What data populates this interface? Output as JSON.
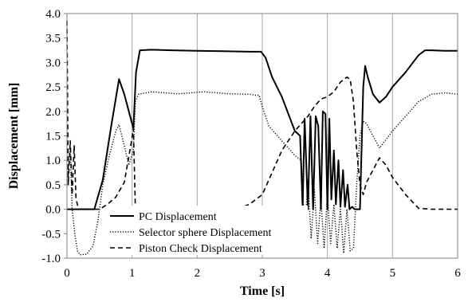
{
  "chart_data": {
    "type": "line",
    "xlabel": "Time [s]",
    "ylabel": "Displacement [mm]",
    "xlim": [
      0,
      6
    ],
    "ylim": [
      -1.0,
      4.0
    ],
    "x_ticks": [
      "0",
      "1",
      "2",
      "3",
      "4",
      "5",
      "6"
    ],
    "y_ticks": [
      "-1.0",
      "-0.5",
      "0.0",
      "0.5",
      "1.0",
      "1.5",
      "2.0",
      "2.5",
      "3.0",
      "3.5",
      "4.0"
    ],
    "grid": "vertical",
    "legend_position": "bottom-center",
    "series": [
      {
        "name": "PC Displacement",
        "style": "solid",
        "color": "#000000",
        "x": [
          0,
          0.3,
          0.42,
          0.55,
          0.68,
          0.8,
          0.88,
          0.95,
          1.02,
          1.06,
          1.12,
          1.3,
          1.6,
          2.0,
          2.4,
          2.8,
          2.98,
          3.05,
          3.15,
          3.3,
          3.5,
          3.58,
          3.62,
          3.65,
          3.7,
          3.74,
          3.78,
          3.82,
          3.86,
          3.9,
          3.93,
          3.97,
          4.0,
          4.03,
          4.06,
          4.1,
          4.13,
          4.17,
          4.2,
          4.24,
          4.27,
          4.31,
          4.34,
          4.38,
          4.42,
          4.46,
          4.5,
          4.55,
          4.58,
          4.62,
          4.7,
          4.8,
          4.9,
          5.0,
          5.2,
          5.4,
          5.5,
          5.6,
          5.8,
          6.0
        ],
        "y": [
          0,
          0,
          0,
          0.6,
          1.7,
          2.66,
          2.35,
          2.0,
          1.65,
          2.8,
          3.25,
          3.26,
          3.25,
          3.24,
          3.23,
          3.22,
          3.22,
          3.1,
          2.7,
          2.3,
          1.6,
          1.5,
          0.05,
          1.85,
          0,
          1.9,
          0,
          1.9,
          1.7,
          0,
          2.0,
          1.95,
          0,
          1.85,
          0.2,
          1.2,
          0.1,
          1.0,
          0.05,
          0.8,
          0.05,
          0.5,
          0,
          0.05,
          0,
          0,
          0,
          2.5,
          2.93,
          2.7,
          2.35,
          2.18,
          2.3,
          2.5,
          2.8,
          3.15,
          3.25,
          3.25,
          3.24,
          3.24
        ]
      },
      {
        "name": "Selector sphere Displacement",
        "style": "dotted",
        "color": "#000000",
        "x": [
          0,
          0.05,
          0.08,
          0.12,
          0.16,
          0.2,
          0.3,
          0.4,
          0.48,
          0.55,
          0.65,
          0.75,
          0.8,
          0.88,
          0.95,
          1.02,
          1.05,
          1.1,
          1.3,
          1.5,
          1.7,
          1.9,
          2.1,
          2.3,
          2.5,
          2.8,
          2.9,
          2.95,
          3.0,
          3.1,
          3.3,
          3.5,
          3.6,
          3.65,
          3.7,
          3.75,
          3.8,
          3.85,
          3.9,
          3.95,
          4.0,
          4.05,
          4.1,
          4.15,
          4.2,
          4.25,
          4.3,
          4.35,
          4.4,
          4.45,
          4.5,
          4.55,
          4.6,
          4.8,
          5.0,
          5.2,
          5.4,
          5.6,
          5.8,
          6.0
        ],
        "y": [
          0.6,
          1.2,
          0.0,
          -0.5,
          -0.85,
          -0.93,
          -0.92,
          -0.75,
          -0.2,
          0.5,
          1.1,
          1.6,
          1.73,
          1.3,
          0.9,
          1.2,
          2.2,
          2.35,
          2.4,
          2.38,
          2.36,
          2.38,
          2.4,
          2.38,
          2.36,
          2.35,
          2.33,
          2.33,
          2.1,
          1.7,
          1.4,
          1.1,
          1.0,
          -0.5,
          0.6,
          -0.6,
          0.4,
          -0.7,
          0.2,
          -0.8,
          0.3,
          -0.7,
          0.1,
          -0.8,
          0.0,
          -0.9,
          0.0,
          -0.85,
          -0.8,
          0.5,
          1.5,
          1.8,
          1.75,
          1.25,
          1.6,
          1.9,
          2.2,
          2.35,
          2.38,
          2.35
        ]
      },
      {
        "name": "Piston Check Displacement",
        "style": "dashed",
        "color": "#000000",
        "x": [
          0,
          0.02,
          0.05,
          0.08,
          0.11,
          0.14,
          0.18,
          0.3,
          0.5,
          0.62,
          0.75,
          0.88,
          0.98,
          1.02,
          1.05,
          1.2,
          1.5,
          1.9,
          2.2,
          2.5,
          2.7,
          2.8,
          3.0,
          3.1,
          3.3,
          3.5,
          3.6,
          3.7,
          3.8,
          3.9,
          4.0,
          4.1,
          4.2,
          4.3,
          4.35,
          4.4,
          4.45,
          4.5,
          4.55,
          4.6,
          4.7,
          4.8,
          4.9,
          5.0,
          5.2,
          5.4,
          5.6,
          5.8,
          6.0
        ],
        "y": [
          3.85,
          0.5,
          1.4,
          0.3,
          1.3,
          0.2,
          0,
          0,
          0,
          0.1,
          0.25,
          0.55,
          1.3,
          1.65,
          0,
          0,
          0,
          0,
          0,
          0.02,
          0.05,
          0.1,
          0.3,
          0.6,
          1.2,
          1.6,
          1.75,
          1.9,
          2.1,
          2.25,
          2.3,
          2.4,
          2.6,
          2.7,
          2.65,
          2.2,
          1.2,
          0.5,
          0.3,
          0.55,
          0.8,
          1.05,
          0.9,
          0.65,
          0.3,
          0.02,
          0,
          0,
          0
        ]
      }
    ]
  }
}
